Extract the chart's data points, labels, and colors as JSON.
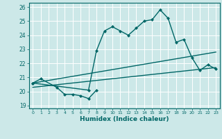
{
  "xlabel": "Humidex (Indice chaleur)",
  "bg_color": "#cce8e8",
  "grid_color": "#ffffff",
  "line_color": "#006666",
  "xlim": [
    -0.5,
    23.5
  ],
  "ylim": [
    18.8,
    26.3
  ],
  "xticks": [
    0,
    1,
    2,
    3,
    4,
    5,
    6,
    7,
    8,
    9,
    10,
    11,
    12,
    13,
    14,
    15,
    16,
    17,
    18,
    19,
    20,
    21,
    22,
    23
  ],
  "yticks": [
    19,
    20,
    21,
    22,
    23,
    24,
    25,
    26
  ],
  "series": [
    {
      "x": [
        0,
        1,
        3,
        4,
        5,
        6,
        7,
        8
      ],
      "y": [
        20.6,
        20.9,
        20.3,
        19.8,
        19.8,
        19.7,
        19.5,
        20.1
      ],
      "marker": "D",
      "markersize": 2.0,
      "linewidth": 1.0
    },
    {
      "x": [
        0,
        7,
        8,
        9,
        10,
        11,
        12,
        13,
        14,
        15,
        16,
        17,
        18,
        19,
        20,
        21,
        22,
        23
      ],
      "y": [
        20.6,
        20.1,
        22.9,
        24.3,
        24.6,
        24.3,
        24.0,
        24.5,
        25.0,
        25.1,
        25.8,
        25.2,
        23.5,
        23.7,
        22.4,
        21.5,
        21.9,
        21.6
      ],
      "marker": "D",
      "markersize": 2.0,
      "linewidth": 1.0
    },
    {
      "x": [
        0,
        23
      ],
      "y": [
        20.3,
        21.7
      ],
      "marker": null,
      "linewidth": 1.0
    },
    {
      "x": [
        0,
        23
      ],
      "y": [
        20.6,
        22.8
      ],
      "marker": null,
      "linewidth": 1.0
    }
  ]
}
